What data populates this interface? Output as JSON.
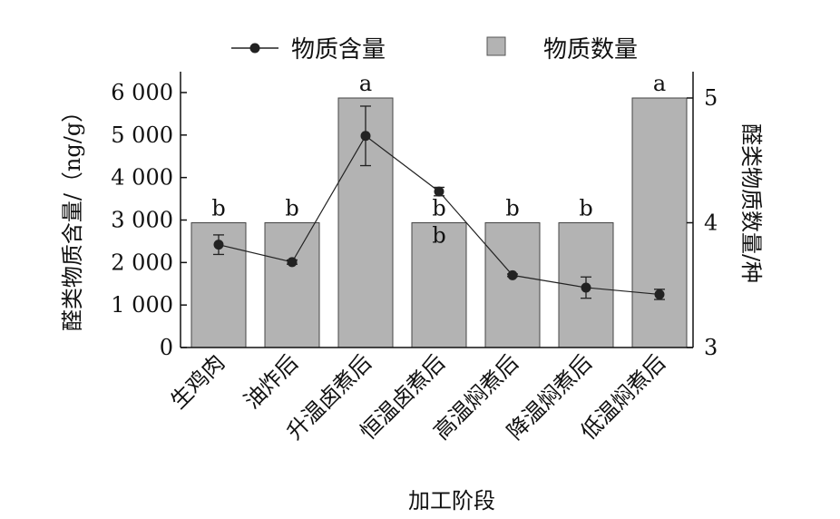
{
  "chart_data": {
    "type": "bar+line",
    "xlabel": "加工阶段",
    "ylabel_left": "醛类物质含量/（ng/g）",
    "ylabel_right": "醛类物质数量/种",
    "ylim_left": [
      0,
      6000
    ],
    "ylim_right": [
      3,
      5
    ],
    "yticks_left": [
      "0",
      "1 000",
      "2 000",
      "3 000",
      "4 000",
      "5 000",
      "6 000"
    ],
    "yticks_right": [
      "3",
      "4",
      "5"
    ],
    "categories": [
      "生鸡肉",
      "油炸后",
      "升温卤煮后",
      "恒温卤煮后",
      "高温焖煮后",
      "降温焖煮后",
      "低温焖煮后"
    ],
    "legend": {
      "line": "物质含量",
      "bar": "物质数量"
    },
    "bar_series": {
      "name": "物质数量",
      "axis": "right",
      "values": [
        4,
        4,
        5,
        4,
        4,
        4,
        5
      ],
      "significance": [
        "b",
        "b",
        "a",
        "b",
        "b",
        "b",
        "a"
      ],
      "color": "#b3b3b3"
    },
    "line_series": {
      "name": "物质含量",
      "axis": "left",
      "values": [
        2420,
        2010,
        4980,
        3670,
        1700,
        1410,
        1250
      ],
      "errors": [
        230,
        50,
        700,
        100,
        30,
        250,
        120
      ],
      "color": "#222222"
    }
  }
}
